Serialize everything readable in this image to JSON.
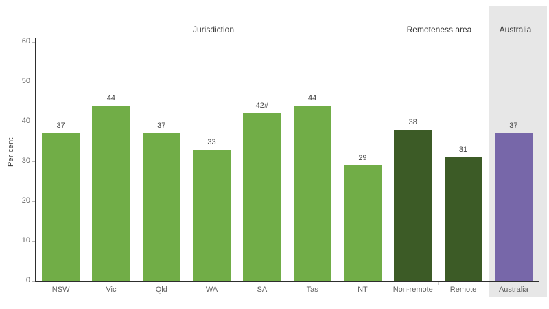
{
  "chart_data": {
    "type": "bar",
    "title": "",
    "xlabel": "",
    "ylabel": "Per cent",
    "ylim": [
      0,
      60
    ],
    "yticks": [
      0,
      10,
      20,
      30,
      40,
      50,
      60
    ],
    "grid": "off",
    "legend": "none",
    "categories": [
      "NSW",
      "Vic",
      "Qld",
      "WA",
      "SA",
      "Tas",
      "NT",
      "Non-remote",
      "Remote",
      "Australia"
    ],
    "values": [
      37,
      44,
      37,
      33,
      42,
      44,
      29,
      38,
      31,
      37
    ],
    "data_labels": [
      "37",
      "44",
      "37",
      "33",
      "42#",
      "44",
      "29",
      "38",
      "31",
      "37"
    ],
    "bar_colors": [
      "#71ad47",
      "#71ad47",
      "#71ad47",
      "#71ad47",
      "#71ad47",
      "#71ad47",
      "#71ad47",
      "#3c5b26",
      "#3c5b26",
      "#7767a9"
    ],
    "groups": [
      {
        "label": "Jurisdiction",
        "span": [
          0,
          6
        ]
      },
      {
        "label": "Remoteness area",
        "span": [
          7,
          8
        ]
      },
      {
        "label": "Australia",
        "span": [
          9,
          9
        ],
        "band_color": "#e7e7e7"
      }
    ]
  },
  "colors": {
    "light_green": "#71ad47",
    "dark_green": "#3c5b26",
    "purple": "#7767a9",
    "band_gray": "#e7e7e7",
    "axis_line": "#2e2e2e",
    "tick_label": "#666666",
    "category_label": "#5f5f5f",
    "value_label": "#444444",
    "header_text": "#333333"
  }
}
